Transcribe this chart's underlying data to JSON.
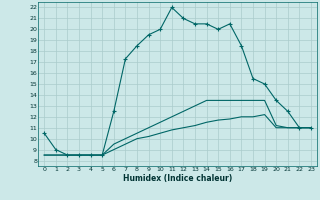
{
  "title": "",
  "xlabel": "Humidex (Indice chaleur)",
  "xlim": [
    -0.5,
    23.5
  ],
  "ylim": [
    7.5,
    22.5
  ],
  "xticks": [
    0,
    1,
    2,
    3,
    4,
    5,
    6,
    7,
    8,
    9,
    10,
    11,
    12,
    13,
    14,
    15,
    16,
    17,
    18,
    19,
    20,
    21,
    22,
    23
  ],
  "yticks": [
    8,
    9,
    10,
    11,
    12,
    13,
    14,
    15,
    16,
    17,
    18,
    19,
    20,
    21,
    22
  ],
  "bg_color": "#cce8e8",
  "grid_color": "#aacccc",
  "line_color": "#006666",
  "line1_x": [
    0,
    1,
    2,
    3,
    4,
    5,
    6,
    7,
    8,
    9,
    10,
    11,
    12,
    13,
    14,
    15,
    16,
    17,
    18,
    19,
    20,
    21,
    22,
    23
  ],
  "line1_y": [
    10.5,
    9.0,
    8.5,
    8.5,
    8.5,
    8.5,
    12.5,
    17.3,
    18.5,
    19.5,
    20.0,
    22.0,
    21.0,
    20.5,
    20.5,
    20.0,
    20.5,
    18.5,
    15.5,
    15.0,
    13.5,
    12.5,
    11.0,
    11.0
  ],
  "line2_x": [
    0,
    1,
    2,
    3,
    4,
    5,
    6,
    7,
    8,
    9,
    10,
    11,
    12,
    13,
    14,
    15,
    16,
    17,
    18,
    19,
    20,
    21,
    22,
    23
  ],
  "line2_y": [
    8.5,
    8.5,
    8.5,
    8.5,
    8.5,
    8.5,
    9.5,
    10.0,
    10.5,
    11.0,
    11.5,
    12.0,
    12.5,
    13.0,
    13.5,
    13.5,
    13.5,
    13.5,
    13.5,
    13.5,
    11.2,
    11.0,
    11.0,
    11.0
  ],
  "line3_x": [
    0,
    1,
    2,
    3,
    4,
    5,
    6,
    7,
    8,
    9,
    10,
    11,
    12,
    13,
    14,
    15,
    16,
    17,
    18,
    19,
    20,
    21,
    22,
    23
  ],
  "line3_y": [
    8.5,
    8.5,
    8.5,
    8.5,
    8.5,
    8.5,
    9.0,
    9.5,
    10.0,
    10.2,
    10.5,
    10.8,
    11.0,
    11.2,
    11.5,
    11.7,
    11.8,
    12.0,
    12.0,
    12.2,
    11.0,
    11.0,
    11.0,
    11.0
  ]
}
